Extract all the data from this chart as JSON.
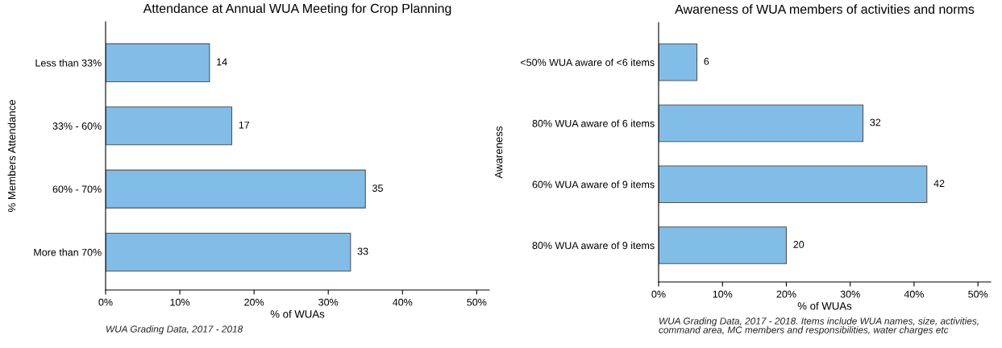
{
  "chart_data": [
    {
      "type": "bar",
      "orientation": "horizontal",
      "title": "Attendance at Annual WUA Meeting for Crop Planning",
      "xlabel": "% of WUAs",
      "ylabel": "% Members Attendance",
      "categories": [
        "Less than 33%",
        "33% - 60%",
        "60% - 70%",
        "More than 70%"
      ],
      "values": [
        14,
        17,
        35,
        33
      ],
      "color": "#82bde8",
      "data_labels": true,
      "grid": false,
      "xlim": [
        0,
        51.7
      ],
      "xticks": [
        {
          "value": 0,
          "label": "0%"
        },
        {
          "value": 10,
          "label": "10%"
        },
        {
          "value": 20,
          "label": "20%"
        },
        {
          "value": 30,
          "label": "30%"
        },
        {
          "value": 40,
          "label": "40%"
        },
        {
          "value": 50,
          "label": "50%"
        }
      ],
      "annotations": [
        "WUA Grading Data, 2017 - 2018"
      ]
    },
    {
      "type": "bar",
      "orientation": "horizontal",
      "title": "Awareness of WUA members of activities and norms",
      "xlabel": "% of WUAs",
      "ylabel": "Awareness",
      "categories": [
        "<50% WUA aware of <6 items",
        "80% WUA aware of 6 items",
        "60% WUA aware of 9 items",
        "80% WUA aware of 9 items"
      ],
      "values": [
        6,
        32,
        42,
        20
      ],
      "color": "#82bde8",
      "data_labels": true,
      "grid": false,
      "xlim": [
        0,
        52
      ],
      "xticks": [
        {
          "value": 0,
          "label": "0%"
        },
        {
          "value": 10,
          "label": "10%"
        },
        {
          "value": 20,
          "label": "20%"
        },
        {
          "value": 30,
          "label": "30%"
        },
        {
          "value": 40,
          "label": "40%"
        },
        {
          "value": 50,
          "label": "50%"
        }
      ],
      "annotations": [
        "WUA Grading Data, 2017 - 2018. Items include WUA names, size, activities,\ncommand area, MC members and responsibilities, water charges etc"
      ]
    }
  ]
}
